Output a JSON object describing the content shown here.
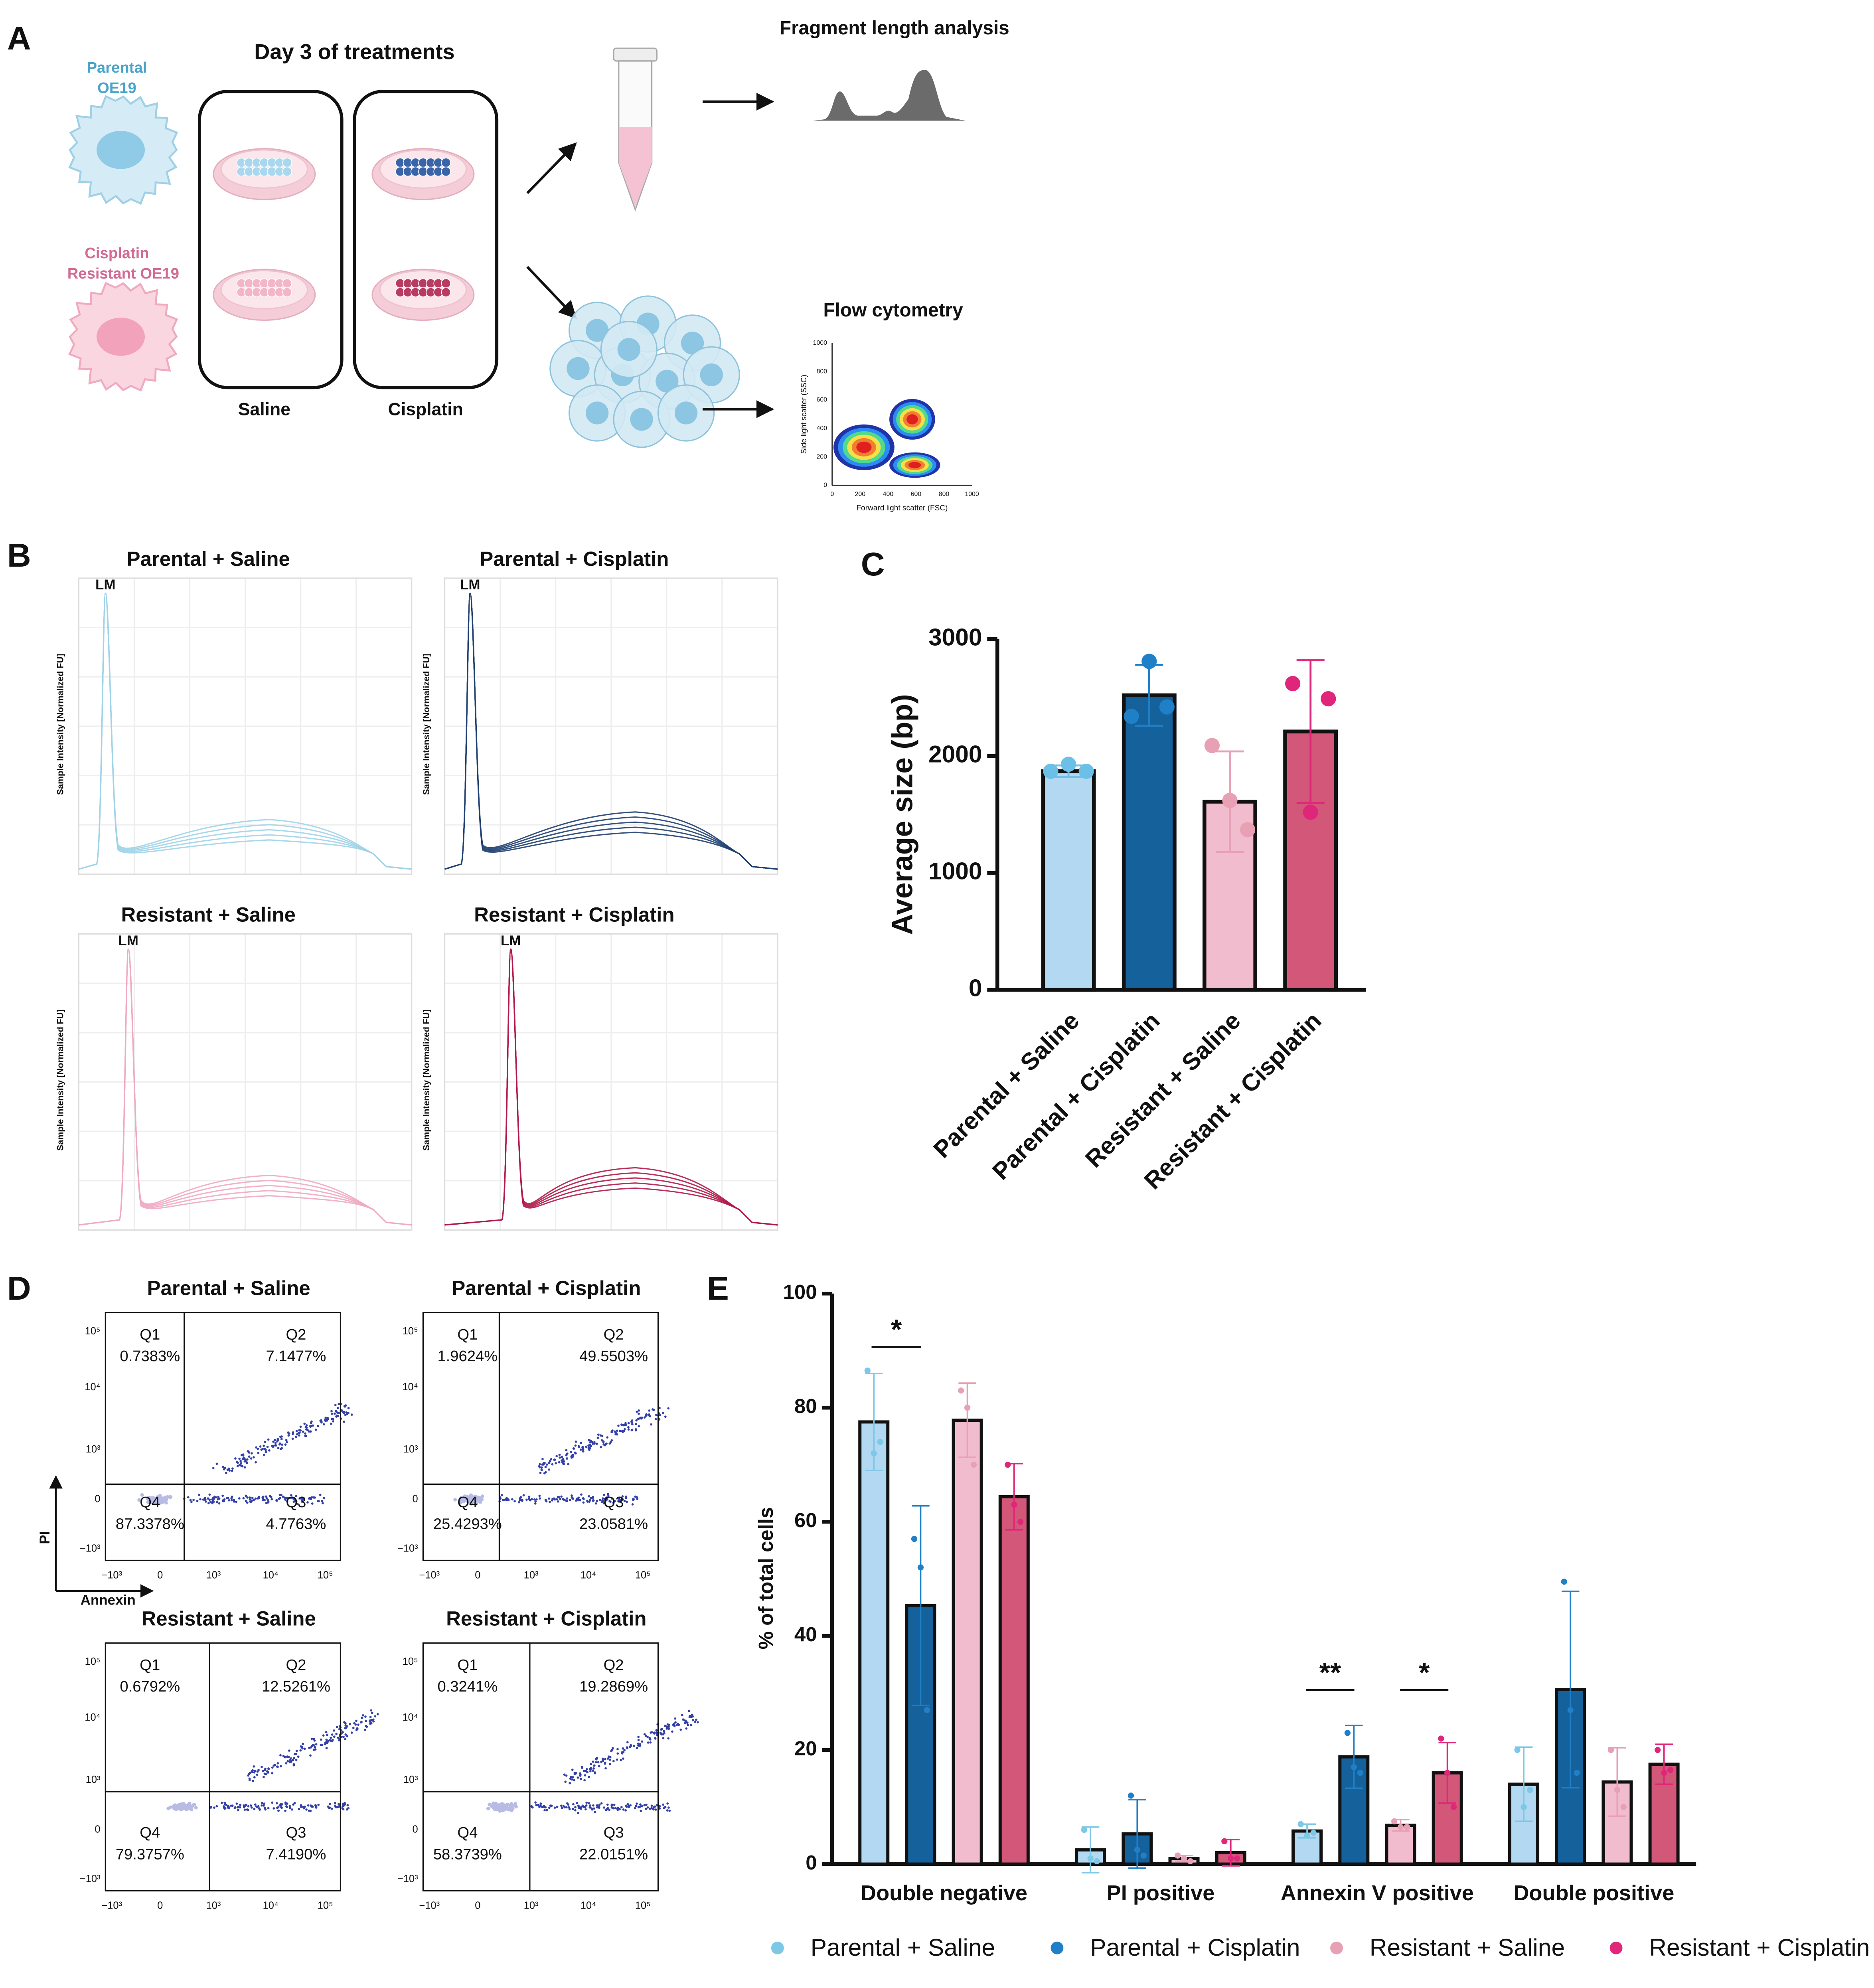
{
  "panel_labels": [
    "A",
    "B",
    "C",
    "D",
    "E"
  ],
  "diagram": {
    "title": "Day 3 of treatments",
    "cell_lines": [
      [
        "Parental",
        "OE19"
      ],
      [
        "Cisplatin",
        "Resistant OE19"
      ]
    ],
    "treatments": [
      "Saline",
      "Cisplatin"
    ],
    "outputs": [
      "Fragment length analysis",
      "Flow cytometry"
    ],
    "scatter_plot": {
      "x_label": "Forward light scatter (FSC)",
      "y_label": "Side light scatter (SSC)",
      "ticks": [
        0,
        200,
        400,
        600,
        800,
        1000
      ]
    }
  },
  "electropherograms": {
    "y_label": "Sample Intensity [Normalized FU]",
    "marker": "LM",
    "plots": [
      {
        "title": "Parental + Saline",
        "color": "#9fd3e8"
      },
      {
        "title": "Parental + Cisplatin",
        "color": "#1f3f70"
      },
      {
        "title": "Resistant + Saline",
        "color": "#f0a8c2"
      },
      {
        "title": "Resistant + Cisplatin",
        "color": "#b01848"
      }
    ]
  },
  "flow_cytometry": {
    "x_label": "Annexin",
    "y_label": "PI",
    "axis_ticks": [
      "10⁵",
      "10⁴",
      "10³",
      "0",
      "−10³"
    ],
    "plots": [
      {
        "title": "Parental + Saline",
        "quadrants": [
          [
            "Q1",
            "0.7383%"
          ],
          [
            "Q2",
            "7.1477%"
          ],
          [
            "Q3",
            "4.7763%"
          ],
          [
            "Q4",
            "87.3378%"
          ]
        ]
      },
      {
        "title": "Parental + Cisplatin",
        "quadrants": [
          [
            "Q1",
            "1.9624%"
          ],
          [
            "Q2",
            "49.5503%"
          ],
          [
            "Q3",
            "23.0581%"
          ],
          [
            "Q4",
            "25.4293%"
          ]
        ]
      },
      {
        "title": "Resistant + Saline",
        "quadrants": [
          [
            "Q1",
            "0.6792%"
          ],
          [
            "Q2",
            "12.5261%"
          ],
          [
            "Q3",
            "7.4190%"
          ],
          [
            "Q4",
            "79.3757%"
          ]
        ]
      },
      {
        "title": "Resistant + Cisplatin",
        "quadrants": [
          [
            "Q1",
            "0.3241%"
          ],
          [
            "Q2",
            "19.2869%"
          ],
          [
            "Q3",
            "22.0151%"
          ],
          [
            "Q4",
            "58.3739%"
          ]
        ]
      }
    ]
  },
  "chart_data": [
    {
      "type": "bar",
      "y_label": "Average size (bp)",
      "categories": [
        "Parental + Saline",
        "Parental + Cisplatin",
        "Resistant + Saline",
        "Resistant + Cisplatin"
      ],
      "values": [
        1870,
        2520,
        1610,
        2210
      ],
      "errors": [
        50,
        260,
        430,
        610
      ],
      "points": [
        [
          1870,
          1930,
          1870
        ],
        [
          2340,
          2810,
          2420
        ],
        [
          2090,
          1620,
          1370
        ],
        [
          2620,
          1520,
          2490
        ]
      ],
      "colors": [
        "#b3d8f1",
        "#15619c",
        "#f2bccf",
        "#d25779"
      ],
      "point_colors": [
        "#6cc0e8",
        "#1f7fc7",
        "#e8a0b4",
        "#e0267a"
      ],
      "ylim": [
        0,
        3000
      ],
      "yticks": [
        0,
        1000,
        2000,
        3000
      ]
    },
    {
      "type": "bar",
      "y_label": "% of total cells",
      "categories": [
        "Double negative",
        "PI positive",
        "Annexin V positive",
        "Double positive"
      ],
      "series": [
        {
          "name": "Parental + Saline",
          "color": "#b3d8f1",
          "marker_color": "#7cc8e6",
          "values": [
            77.5,
            2.5,
            5.8,
            14
          ],
          "errors": [
            8.5,
            4,
            1.2,
            6.5
          ],
          "points": [
            [
              86.5,
              72,
              74
            ],
            [
              6,
              1,
              0.5
            ],
            [
              7,
              5,
              5.5
            ],
            [
              20,
              10,
              13
            ]
          ]
        },
        {
          "name": "Parental + Cisplatin",
          "color": "#15619c",
          "marker_color": "#1f7fc7",
          "values": [
            45.3,
            5.3,
            18.8,
            30.6
          ],
          "errors": [
            17.5,
            6,
            5.5,
            17.2
          ],
          "points": [
            [
              57,
              52,
              27
            ],
            [
              12,
              2.5,
              1.5
            ],
            [
              23,
              17,
              16
            ],
            [
              49.5,
              27,
              16
            ]
          ]
        },
        {
          "name": "Resistant + Saline",
          "color": "#f2bccf",
          "marker_color": "#e8a0b4",
          "values": [
            77.8,
            1,
            6.8,
            14.4
          ],
          "errors": [
            6.5,
            0.5,
            1,
            6
          ],
          "points": [
            [
              83,
              80,
              70
            ],
            [
              1.5,
              1,
              0.5
            ],
            [
              7.5,
              6.5,
              6.5
            ],
            [
              20,
              13,
              10
            ]
          ]
        },
        {
          "name": "Resistant + Cisplatin",
          "color": "#d25779",
          "marker_color": "#e0267a",
          "values": [
            64.4,
            2,
            16,
            17.5
          ],
          "errors": [
            5.8,
            2.3,
            5.3,
            3.5
          ],
          "points": [
            [
              70,
              63,
              60
            ],
            [
              4,
              1,
              1
            ],
            [
              22,
              16,
              10
            ],
            [
              20,
              16,
              16.5
            ]
          ]
        }
      ],
      "annotations": [
        "*",
        "**",
        "*"
      ],
      "ylim": [
        0,
        100
      ],
      "yticks": [
        0,
        20,
        40,
        60,
        80,
        100
      ],
      "legend": "bottom"
    }
  ]
}
